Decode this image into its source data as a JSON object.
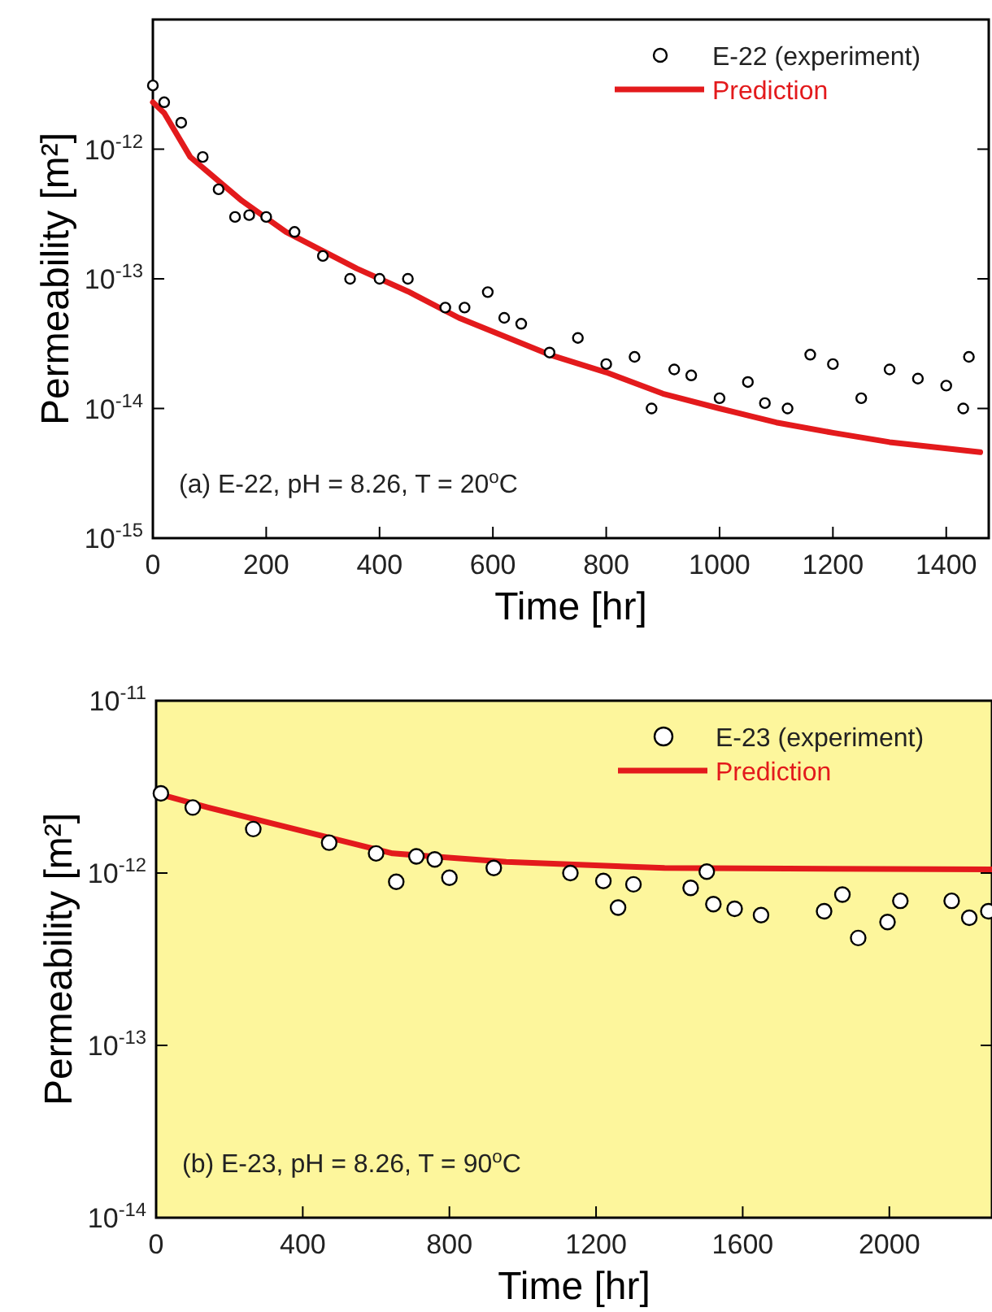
{
  "chart_data": [
    {
      "type": "scatter",
      "xlabel": "Time [hr]",
      "ylabel": "Permeability [m²]",
      "log": "y",
      "xlim": [
        0,
        1475
      ],
      "xticks": [
        0,
        200,
        400,
        600,
        800,
        1000,
        1200,
        1400
      ],
      "ylim": [
        1e-15,
        1e-11
      ],
      "yticks": [
        {
          "value": 1e-15,
          "label": "10$^{-15}$"
        },
        {
          "value": 1e-14,
          "label": "10$^{-14}$"
        },
        {
          "value": 1e-13,
          "label": "10$^{-13}$"
        },
        {
          "value": 1e-12,
          "label": "10$^{-12}$"
        },
        {
          "value": 1e-11,
          "label": null
        }
      ],
      "legend": "top right",
      "annotations": [
        "(a) E-22, pH = 8.26, T = 20$^{o}$C"
      ],
      "series": [
        {
          "name": "E-22 (experiment)",
          "color": "#000000",
          "marker": "circle",
          "x": [
            0,
            20,
            50,
            88,
            116,
            145,
            170,
            200,
            250,
            300,
            348,
            400,
            450,
            516,
            550,
            591,
            620,
            650,
            700,
            750,
            800,
            850,
            880,
            920,
            950,
            1000,
            1050,
            1080,
            1120,
            1160,
            1200,
            1250,
            1300,
            1350,
            1400,
            1430,
            1440
          ],
          "values": [
            3.1e-12,
            2.3e-12,
            1.6e-12,
            8.7e-13,
            4.9e-13,
            3e-13,
            3.1e-13,
            3e-13,
            2.3e-13,
            1.5e-13,
            1e-13,
            1e-13,
            1e-13,
            6e-14,
            6e-14,
            7.9e-14,
            5e-14,
            4.5e-14,
            2.7e-14,
            3.5e-14,
            2.2e-14,
            2.5e-14,
            1e-14,
            2e-14,
            1.8e-14,
            1.2e-14,
            1.6e-14,
            1.1e-14,
            1e-14,
            2.6e-14,
            2.2e-14,
            1.2e-14,
            2e-14,
            1.7e-14,
            1.5e-14,
            1e-14,
            2.5e-14
          ]
        },
        {
          "name": "Prediction",
          "type": "line",
          "marker": "none",
          "color": "#e31a1c",
          "x": [
            0,
            20,
            66,
            157,
            235,
            360,
            450,
            540,
            700,
            800,
            900,
            1000,
            1100,
            1200,
            1300,
            1460
          ],
          "values": [
            2.3e-12,
            1.9e-12,
            8.7e-13,
            4e-13,
            2.3e-13,
            1.2e-13,
            8e-14,
            5e-14,
            2.6e-14,
            1.9e-14,
            1.3e-14,
            1e-14,
            7.8e-15,
            6.5e-15,
            5.5e-15,
            4.6e-15
          ]
        }
      ]
    },
    {
      "type": "scatter",
      "xlabel": "Time [hr]",
      "ylabel": "Permeability [m²]",
      "log": "y",
      "xlim": [
        0,
        2280
      ],
      "xticks": [
        0,
        400,
        800,
        1200,
        1600,
        2000
      ],
      "ylim": [
        1e-14,
        1e-11
      ],
      "yticks": [
        {
          "value": 1e-14,
          "label": "10$^{-14}$"
        },
        {
          "value": 1e-13,
          "label": "10$^{-13}$"
        },
        {
          "value": 1e-12,
          "label": "10$^{-12}$"
        },
        {
          "value": 1e-11,
          "label": "10$^{-11}$"
        }
      ],
      "legend": "top right",
      "annotations": [
        "(b) E-23, pH = 8.26, T = 90$^{o}$C"
      ],
      "series": [
        {
          "name": "E-23 (experiment)",
          "color": "#000000",
          "marker": "circle",
          "x": [
            13,
            100,
            265,
            472,
            600,
            655,
            710,
            760,
            800,
            921,
            1130,
            1220,
            1260,
            1302,
            1458,
            1502,
            1520,
            1578,
            1650,
            1822,
            1872,
            1915,
            1995,
            2030,
            2170,
            2218,
            2270
          ],
          "values": [
            2.9e-12,
            2.4e-12,
            1.8e-12,
            1.5e-12,
            1.3e-12,
            8.9e-13,
            1.25e-12,
            1.2e-12,
            9.4e-13,
            1.07e-12,
            1e-12,
            9e-13,
            6.3e-13,
            8.6e-13,
            8.2e-13,
            1.02e-12,
            6.6e-13,
            6.2e-13,
            5.7e-13,
            6e-13,
            7.5e-13,
            4.2e-13,
            5.2e-13,
            6.9e-13,
            6.9e-13,
            5.5e-13,
            6e-13
          ]
        },
        {
          "name": "Prediction",
          "type": "line",
          "marker": "none",
          "color": "#e31a1c",
          "x": [
            0,
            142,
            645,
            955,
            1387,
            2280
          ],
          "values": [
            2.9e-12,
            2.4e-12,
            1.3e-12,
            1.16e-12,
            1.07e-12,
            1.05e-12
          ]
        }
      ]
    }
  ]
}
